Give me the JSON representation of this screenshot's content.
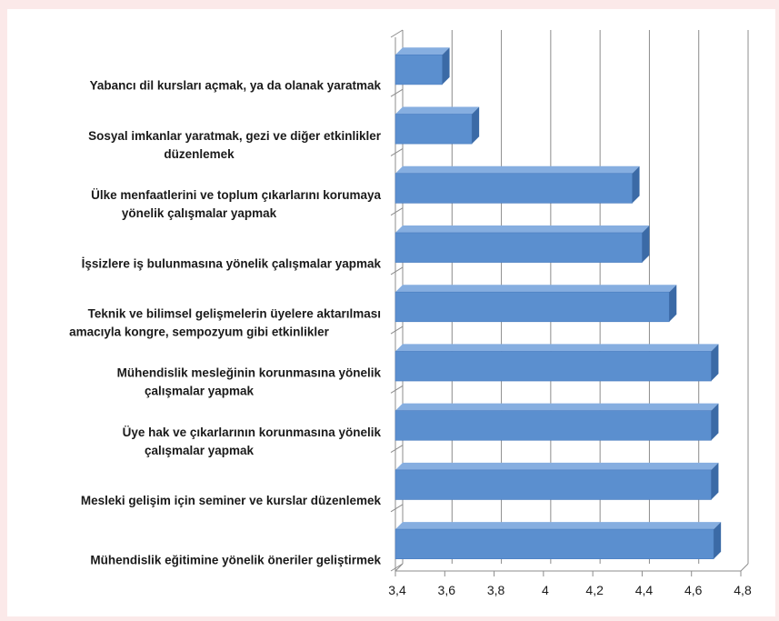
{
  "chart_data": {
    "type": "bar",
    "orientation": "horizontal",
    "style": "3d",
    "title": "",
    "xlabel": "",
    "ylabel": "",
    "xlim": [
      3.4,
      4.8
    ],
    "xticks": [
      "3,4",
      "3,6",
      "3,8",
      "4",
      "4,2",
      "4,4",
      "4,6",
      "4,8"
    ],
    "grid": true,
    "bar_color": "#5b8fcf",
    "categories": [
      [
        "Yabancı dil kursları açmak, ya da olanak yaratmak"
      ],
      [
        "Sosyal imkanlar yaratmak, gezi ve diğer etkinlikler",
        "düzenlemek"
      ],
      [
        "Ülke menfaatlerini ve toplum çıkarlarını korumaya",
        "yönelik çalışmalar yapmak"
      ],
      [
        "İşsizlere iş bulunmasına yönelik çalışmalar yapmak"
      ],
      [
        "Teknik ve bilimsel gelişmelerin üyelere aktarılması",
        "amacıyla kongre, sempozyum gibi etkinlikler"
      ],
      [
        "Mühendislik mesleğinin korunmasına yönelik",
        "çalışmalar yapmak"
      ],
      [
        "Üye hak ve çıkarlarının korunmasına yönelik",
        "çalışmalar yapmak"
      ],
      [
        "Mesleki gelişim için seminer ve kurslar düzenlemek"
      ],
      [
        "Mühendislik eğitimine yönelik öneriler geliştirmek"
      ]
    ],
    "values": [
      3.59,
      3.71,
      4.36,
      4.4,
      4.51,
      4.68,
      4.68,
      4.68,
      4.69
    ]
  }
}
